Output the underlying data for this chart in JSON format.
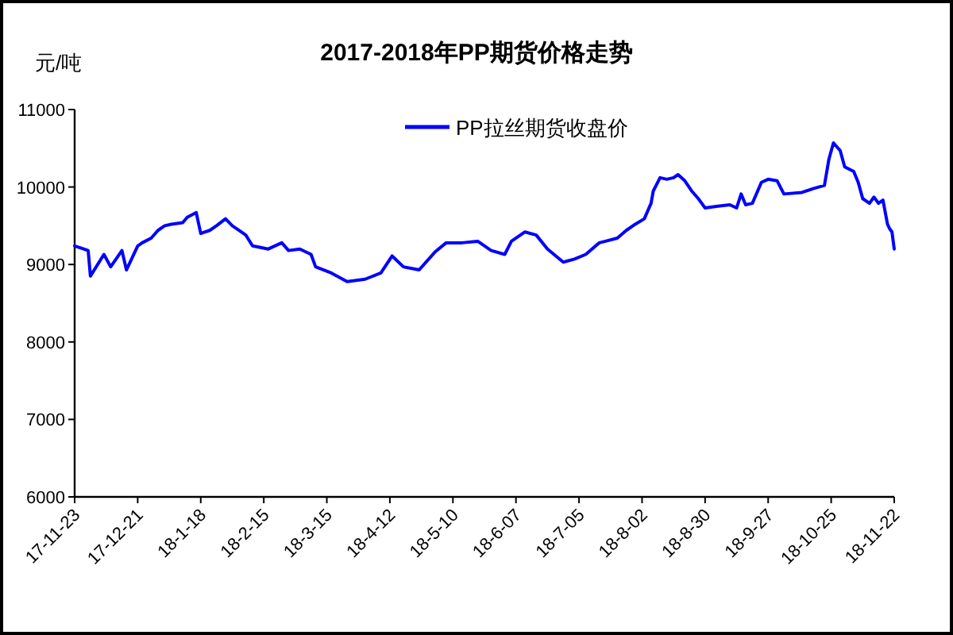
{
  "chart_data": {
    "type": "line",
    "title": "2017-2018年PP期货价格走势",
    "ylabel": "元/吨",
    "x": [
      "2017-11-23",
      "2017-11-27",
      "2017-11-29",
      "2017-11-30",
      "2017-12-06",
      "2017-12-09",
      "2017-12-14",
      "2017-12-16",
      "2017-12-21",
      "2017-12-23",
      "2017-12-27",
      "2017-12-30",
      "2018-01-02",
      "2018-01-05",
      "2018-01-10",
      "2018-01-12",
      "2018-01-16",
      "2018-01-18",
      "2018-01-22",
      "2018-01-25",
      "2018-01-29",
      "2018-02-01",
      "2018-02-05",
      "2018-02-07",
      "2018-02-10",
      "2018-02-17",
      "2018-02-23",
      "2018-02-26",
      "2018-03-03",
      "2018-03-08",
      "2018-03-10",
      "2018-03-17",
      "2018-03-24",
      "2018-04-01",
      "2018-04-08",
      "2018-04-13",
      "2018-04-18",
      "2018-04-25",
      "2018-05-02",
      "2018-05-07",
      "2018-05-14",
      "2018-05-21",
      "2018-05-27",
      "2018-06-02",
      "2018-06-05",
      "2018-06-11",
      "2018-06-16",
      "2018-06-21",
      "2018-06-28",
      "2018-07-03",
      "2018-07-08",
      "2018-07-14",
      "2018-07-22",
      "2018-07-26",
      "2018-07-30",
      "2018-08-03",
      "2018-08-06",
      "2018-08-07",
      "2018-08-10",
      "2018-08-13",
      "2018-08-16",
      "2018-08-18",
      "2018-08-21",
      "2018-08-24",
      "2018-08-27",
      "2018-08-30",
      "2018-09-04",
      "2018-09-10",
      "2018-09-13",
      "2018-09-15",
      "2018-09-17",
      "2018-09-20",
      "2018-09-24",
      "2018-09-27",
      "2018-10-01",
      "2018-10-04",
      "2018-10-12",
      "2018-10-17",
      "2018-10-22",
      "2018-10-24",
      "2018-10-26",
      "2018-10-29",
      "2018-10-31",
      "2018-11-04",
      "2018-11-06",
      "2018-11-08",
      "2018-11-11",
      "2018-11-13",
      "2018-11-15",
      "2018-11-17",
      "2018-11-19",
      "2018-11-20",
      "2018-11-21",
      "2018-11-22"
    ],
    "series": [
      {
        "name": "PP拉丝期货收盘价",
        "color": "#0000ff",
        "values": [
          9240,
          9200,
          9180,
          8850,
          9130,
          8970,
          9180,
          8930,
          9240,
          9280,
          9340,
          9440,
          9500,
          9520,
          9540,
          9610,
          9670,
          9400,
          9440,
          9500,
          9590,
          9500,
          9420,
          9380,
          9240,
          9200,
          9280,
          9180,
          9200,
          9130,
          8970,
          8890,
          8780,
          8810,
          8890,
          9110,
          8970,
          8930,
          9160,
          9280,
          9280,
          9300,
          9180,
          9130,
          9300,
          9420,
          9380,
          9200,
          9030,
          9070,
          9130,
          9280,
          9340,
          9440,
          9520,
          9590,
          9790,
          9950,
          10120,
          10100,
          10120,
          10160,
          10080,
          9950,
          9850,
          9730,
          9750,
          9770,
          9730,
          9910,
          9770,
          9790,
          10060,
          10100,
          10080,
          9910,
          9930,
          9980,
          10020,
          10360,
          10570,
          10470,
          10260,
          10200,
          10060,
          9850,
          9790,
          9870,
          9790,
          9830,
          9520,
          9460,
          9420,
          9200
        ]
      }
    ],
    "xlim": [
      "2017-11-23",
      "2018-11-22"
    ],
    "xticks": [
      {
        "value": "2017-11-23",
        "label": "17-11-23"
      },
      {
        "value": "2017-12-21",
        "label": "17-12-21"
      },
      {
        "value": "2018-01-18",
        "label": "18-1-18"
      },
      {
        "value": "2018-02-15",
        "label": "18-2-15"
      },
      {
        "value": "2018-03-15",
        "label": "18-3-15"
      },
      {
        "value": "2018-04-12",
        "label": "18-4-12"
      },
      {
        "value": "2018-05-10",
        "label": "18-5-10"
      },
      {
        "value": "2018-06-07",
        "label": "18-6-07"
      },
      {
        "value": "2018-07-05",
        "label": "18-7-05"
      },
      {
        "value": "2018-08-02",
        "label": "18-8-02"
      },
      {
        "value": "2018-08-30",
        "label": "18-8-30"
      },
      {
        "value": "2018-09-27",
        "label": "18-9-27"
      },
      {
        "value": "2018-10-25",
        "label": "18-10-25"
      },
      {
        "value": "2018-11-22",
        "label": "18-11-22"
      }
    ],
    "ylim": [
      6000,
      11000
    ],
    "yticks": [
      6000,
      7000,
      8000,
      9000,
      10000,
      11000
    ],
    "grid": false,
    "legend": "top",
    "marker": "none",
    "line_style": "solid"
  }
}
